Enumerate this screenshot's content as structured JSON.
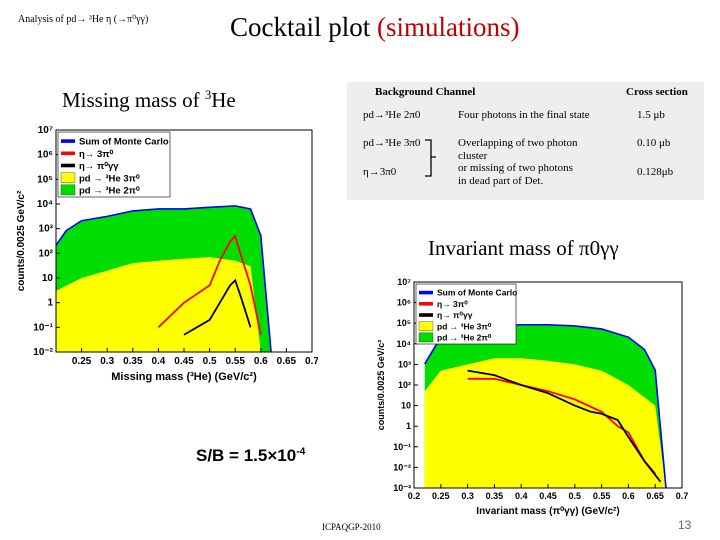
{
  "header": {
    "note": "Analysis of pd→ ³He η (→π⁰γγ)",
    "title": "Cocktail plot",
    "title_paren": "(simulations)"
  },
  "missing_mass_label": "Missing mass of",
  "missing_mass_label_sup": "3",
  "missing_mass_label_tail": "He",
  "table": {
    "headers": {
      "channel": "Background Channel",
      "cross": "Cross section"
    },
    "rows": [
      {
        "reaction": "pd→³He 2π0",
        "description": "Four photons in the final state",
        "cross": "1.5 μb"
      },
      {
        "reaction": "pd→³He 3π0",
        "description": "Overlapping of two photon\ncluster\nor missing of two photons\nin dead part of  Det.",
        "cross": "0.10 μb"
      },
      {
        "reaction": "η→3π0",
        "description": "",
        "cross": "0.128μb"
      }
    ]
  },
  "invariant_label": "Invariant mass of  π0γγ",
  "sb_text": "S/B =  1.5×10",
  "sb_exp": "-4",
  "footer": "ICPAQGP-2010",
  "page_number": "13",
  "colors": {
    "sum": "#0000ff",
    "eta_3pi": "#ff0000",
    "eta_pi": "#000000",
    "pd_3pi": "#ffff00",
    "pd_2pi": "#00dd00",
    "title_accent": "#c00000"
  },
  "chart_data": [
    {
      "type": "area",
      "title": "",
      "xlabel": "Missing mass (³He) (GeV/c²)",
      "ylabel": "counts/0.0025 GeV/c²",
      "yscale": "log",
      "ylim": [
        0.01,
        10000000
      ],
      "xlim": [
        0.2,
        0.7
      ],
      "xticks": [
        "0.25",
        "0.3",
        "0.35",
        "0.4",
        "0.45",
        "0.5",
        "0.55",
        "0.6",
        "0.65",
        "0.7"
      ],
      "yticks": [
        "10⁷",
        "10⁶",
        "10⁵",
        "10⁴",
        "10³",
        "10²",
        "10",
        "1",
        "10⁻¹",
        "10⁻²"
      ],
      "legend": [
        "Sum of Monte Carlo",
        "η→ 3π⁰",
        "η→ π⁰γγ",
        "pd → ³He 3π⁰",
        "pd → ³He 2π⁰"
      ],
      "legend_position": "top-left",
      "series": [
        {
          "name": "pd → ³He 2π⁰",
          "x": [
            0.2,
            0.22,
            0.25,
            0.3,
            0.35,
            0.4,
            0.45,
            0.5,
            0.55,
            0.58,
            0.6,
            0.62
          ],
          "y": [
            200,
            800,
            2000,
            3000,
            5000,
            6000,
            6000,
            7000,
            8000,
            6000,
            500,
            0.01
          ]
        },
        {
          "name": "pd → ³He 3π⁰",
          "x": [
            0.2,
            0.25,
            0.3,
            0.35,
            0.4,
            0.45,
            0.5,
            0.55,
            0.58,
            0.6
          ],
          "y": [
            3,
            10,
            20,
            40,
            50,
            60,
            70,
            50,
            30,
            0.01
          ]
        },
        {
          "name": "η→ 3π⁰",
          "x": [
            0.4,
            0.45,
            0.5,
            0.52,
            0.54,
            0.55,
            0.56,
            0.58,
            0.6
          ],
          "y": [
            0.1,
            1,
            5,
            50,
            300,
            500,
            100,
            5,
            0.05
          ]
        },
        {
          "name": "η→ π⁰γγ",
          "x": [
            0.45,
            0.5,
            0.52,
            0.54,
            0.55,
            0.56,
            0.58
          ],
          "y": [
            0.05,
            0.2,
            1,
            5,
            8,
            2,
            0.1
          ]
        }
      ]
    },
    {
      "type": "area",
      "title": "",
      "xlabel": "Invariant mass (π⁰γγ) (GeV/c²)",
      "ylabel": "counts/0.0025 GeV/c²",
      "yscale": "log",
      "ylim": [
        0.001,
        10000000
      ],
      "xlim": [
        0.2,
        0.7
      ],
      "xticks": [
        "0.2",
        "0.25",
        "0.3",
        "0.35",
        "0.4",
        "0.45",
        "0.5",
        "0.55",
        "0.6",
        "0.65",
        "0.7"
      ],
      "yticks": [
        "10⁷",
        "10⁶",
        "10⁵",
        "10⁴",
        "10³",
        "10²",
        "10",
        "1",
        "10⁻¹",
        "10⁻²",
        "10⁻³"
      ],
      "legend": [
        "Sum of Monte Carlo",
        "η→ 3π⁰",
        "η→ π⁰γγ",
        "pd → ³He 3π⁰",
        "pd → ³He 2π⁰"
      ],
      "legend_position": "top-left",
      "series": [
        {
          "name": "pd → ³He 2π⁰",
          "x": [
            0.22,
            0.25,
            0.3,
            0.35,
            0.4,
            0.45,
            0.5,
            0.55,
            0.6,
            0.63,
            0.65,
            0.67
          ],
          "y": [
            1000,
            20000,
            50000,
            70000,
            80000,
            80000,
            70000,
            50000,
            20000,
            5000,
            500,
            0.001
          ]
        },
        {
          "name": "pd → ³He 3π⁰",
          "x": [
            0.22,
            0.25,
            0.3,
            0.35,
            0.4,
            0.45,
            0.5,
            0.55,
            0.6,
            0.65,
            0.67
          ],
          "y": [
            50,
            500,
            1000,
            2000,
            2000,
            1500,
            1000,
            500,
            100,
            10,
            0.001
          ]
        },
        {
          "name": "η→ 3π⁰",
          "x": [
            0.3,
            0.35,
            0.4,
            0.45,
            0.5,
            0.55,
            0.58,
            0.6,
            0.63,
            0.65
          ],
          "y": [
            200,
            200,
            100,
            50,
            20,
            5,
            1,
            0.5,
            0.02,
            0.005
          ]
        },
        {
          "name": "η→ π⁰γγ",
          "x": [
            0.3,
            0.35,
            0.4,
            0.45,
            0.5,
            0.53,
            0.55,
            0.58,
            0.6,
            0.63,
            0.66
          ],
          "y": [
            500,
            300,
            100,
            40,
            10,
            5,
            4,
            2,
            0.3,
            0.02,
            0.002
          ]
        }
      ]
    }
  ]
}
